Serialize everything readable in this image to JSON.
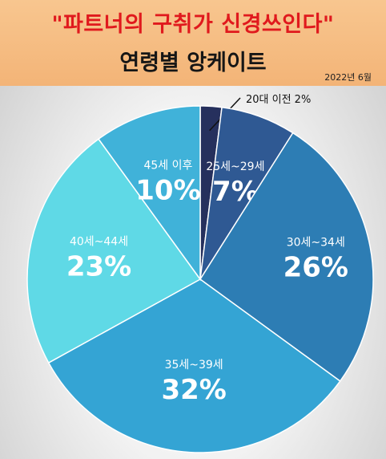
{
  "header": {
    "title": "\"파트너의 구취가 신경쓰인다\"",
    "subtitle": "연령별 앙케이트",
    "date": "2022년 6월"
  },
  "chart_data": {
    "type": "pie",
    "slices": [
      {
        "label": "20대 이전",
        "value": 2,
        "display": "20대 이전 2%",
        "color": "#26305d"
      },
      {
        "label": "25세~29세",
        "value": 7,
        "display": "7%",
        "color": "#2f5993"
      },
      {
        "label": "30세~34세",
        "value": 26,
        "display": "26%",
        "color": "#2d7db4"
      },
      {
        "label": "35세~39세",
        "value": 32,
        "display": "32%",
        "color": "#34a4d4"
      },
      {
        "label": "40세~44세",
        "value": 23,
        "display": "23%",
        "color": "#5fd9e6"
      },
      {
        "label": "45세 이후",
        "value": 10,
        "display": "10%",
        "color": "#40b2d9"
      }
    ],
    "legend": "none"
  }
}
